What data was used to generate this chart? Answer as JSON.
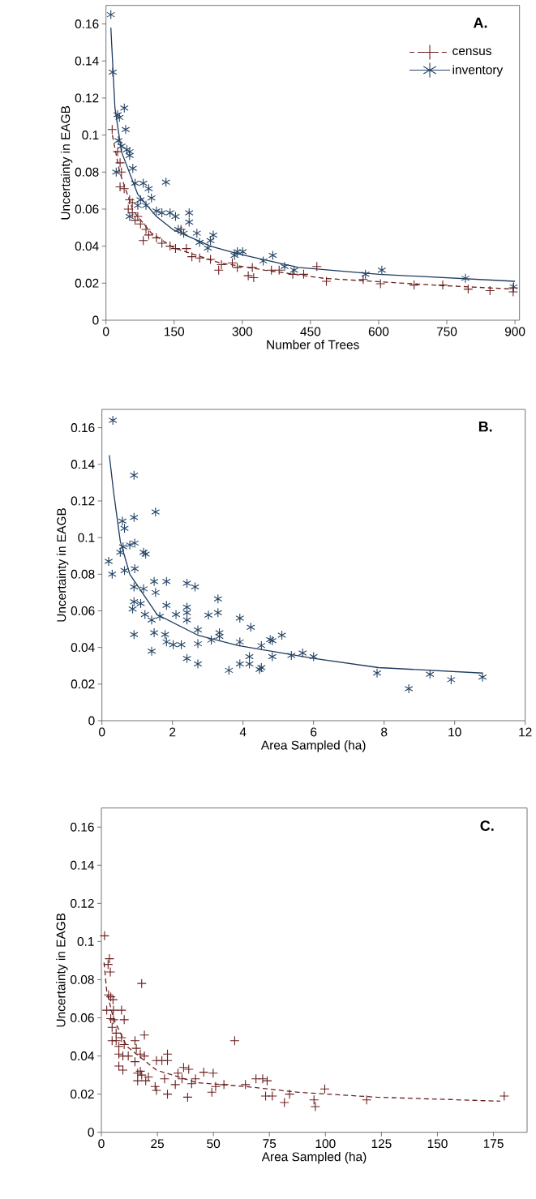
{
  "chart_data": [
    {
      "type": "scatter",
      "xlabel": "Number of Trees",
      "ylabel": "Uncertainty in EAGB",
      "annotations": [
        "A."
      ],
      "xlim": [
        0,
        910
      ],
      "ylim": [
        0,
        0.17
      ],
      "xticks": [
        0,
        150,
        300,
        450,
        600,
        750,
        900
      ],
      "yticks": [
        0,
        0.02,
        0.04,
        0.06,
        0.08,
        0.1,
        0.12,
        0.14,
        0.16
      ],
      "legend": "top right",
      "grid": false,
      "series": [
        {
          "name": "census",
          "type": "scatter",
          "marker": "cross",
          "color": "#6b1f1f",
          "x": [
            13.6,
            25.5,
            31,
            34,
            31,
            40,
            52,
            58,
            49,
            58,
            70,
            64,
            76,
            88,
            94,
            82,
            111,
            123,
            141,
            153,
            165,
            177,
            189,
            206,
            230,
            254,
            278,
            289,
            248,
            313,
            325,
            322,
            364,
            381,
            411,
            435,
            464,
            485,
            566,
            604,
            678,
            741,
            797,
            845,
            896,
            896
          ],
          "values": [
            0.103,
            0.091,
            0.085,
            0.08,
            0.072,
            0.071,
            0.065,
            0.0635,
            0.06,
            0.058,
            0.056,
            0.054,
            0.052,
            0.049,
            0.046,
            0.043,
            0.0445,
            0.0416,
            0.04,
            0.0387,
            0.049,
            0.0387,
            0.0343,
            0.0336,
            0.0328,
            0.03,
            0.031,
            0.0285,
            0.027,
            0.024,
            0.023,
            0.0285,
            0.027,
            0.027,
            0.0248,
            0.0248,
            0.029,
            0.021,
            0.022,
            0.0197,
            0.019,
            0.019,
            0.0168,
            0.016,
            0.0153,
            0.0175
          ]
        },
        {
          "type": "line",
          "line_style": "dashed",
          "color": "#6b1f1f",
          "x": [
            14,
            30,
            60,
            100,
            150,
            250,
            350,
            480,
            720,
            898
          ],
          "values": [
            0.1,
            0.08,
            0.059,
            0.047,
            0.039,
            0.031,
            0.027,
            0.0226,
            0.019,
            0.0168
          ]
        },
        {
          "name": "inventory",
          "type": "scatter",
          "color": "#244466",
          "x": [
            10.7,
            14.8,
            25.5,
            29.6,
            40.3,
            43.3,
            27.3,
            34.4,
            46,
            52,
            22.5,
            52,
            59,
            64,
            82,
            94,
            100,
            132,
            52,
            70,
            76,
            88,
            111,
            123,
            141,
            153,
            183,
            183,
            159,
            171,
            200,
            206,
            236,
            230,
            289,
            283,
            224,
            301,
            367,
            346,
            393,
            414,
            571,
            607,
            791,
            897
          ],
          "values": [
            0.165,
            0.134,
            0.111,
            0.1095,
            0.1146,
            0.103,
            0.097,
            0.094,
            0.092,
            0.091,
            0.08,
            0.089,
            0.082,
            0.074,
            0.074,
            0.071,
            0.066,
            0.0745,
            0.056,
            0.062,
            0.065,
            0.062,
            0.059,
            0.058,
            0.058,
            0.056,
            0.058,
            0.053,
            0.049,
            0.047,
            0.047,
            0.042,
            0.046,
            0.043,
            0.037,
            0.035,
            0.039,
            0.037,
            0.035,
            0.032,
            0.029,
            0.027,
            0.0248,
            0.027,
            0.0226,
            0.018
          ]
        },
        {
          "type": "line",
          "line_style": "solid",
          "color": "#1d3b5e",
          "x": [
            10.7,
            19.6,
            34,
            70,
            111,
            147,
            230,
            289,
            423,
            601,
            900
          ],
          "values": [
            0.158,
            0.115,
            0.091,
            0.068,
            0.056,
            0.049,
            0.04,
            0.036,
            0.0285,
            0.0248,
            0.021
          ]
        }
      ]
    },
    {
      "type": "scatter",
      "xlabel": "Area Sampled (ha)",
      "ylabel": "Uncertainty in EAGB",
      "annotations": [
        "B."
      ],
      "xlim": [
        0,
        12
      ],
      "ylim": [
        0,
        0.17
      ],
      "xticks": [
        0,
        2,
        4,
        6,
        8,
        10,
        12
      ],
      "yticks": [
        0,
        0.02,
        0.04,
        0.06,
        0.08,
        0.1,
        0.12,
        0.14,
        0.16
      ],
      "grid": false,
      "series": [
        {
          "type": "scatter",
          "color": "#244466",
          "x": [
            0.31,
            0.91,
            1.52,
            0.91,
            0.58,
            0.64,
            0.19,
            0.29,
            0.52,
            0.6,
            0.79,
            0.93,
            1.18,
            1.24,
            0.64,
            0.93,
            0.91,
            1.18,
            1.48,
            1.83,
            1.52,
            0.91,
            0.87,
            1.1,
            1.22,
            1.41,
            1.64,
            1.83,
            2.1,
            2.41,
            2.41,
            2.41,
            2.64,
            2.41,
            0.91,
            1.41,
            1.48,
            1.79,
            1.83,
            2.02,
            2.25,
            2.41,
            2.72,
            2.72,
            2.72,
            3.02,
            3.1,
            3.29,
            3.29,
            3.33,
            3.33,
            3.6,
            3.91,
            3.91,
            3.91,
            4.18,
            4.22,
            4.18,
            4.52,
            4.52,
            4.83,
            4.83,
            5.1,
            5.37,
            4.47,
            4.77,
            5.69,
            6.0,
            7.8,
            8.7,
            9.3,
            9.9,
            10.79
          ],
          "values": [
            0.164,
            0.134,
            0.114,
            0.111,
            0.109,
            0.105,
            0.087,
            0.08,
            0.092,
            0.095,
            0.096,
            0.097,
            0.092,
            0.091,
            0.082,
            0.083,
            0.073,
            0.072,
            0.076,
            0.076,
            0.07,
            0.065,
            0.061,
            0.064,
            0.058,
            0.055,
            0.057,
            0.063,
            0.058,
            0.059,
            0.062,
            0.055,
            0.073,
            0.075,
            0.047,
            0.038,
            0.048,
            0.047,
            0.043,
            0.0415,
            0.0415,
            0.034,
            0.031,
            0.0496,
            0.042,
            0.0577,
            0.044,
            0.0665,
            0.059,
            0.048,
            0.046,
            0.0275,
            0.056,
            0.043,
            0.031,
            0.035,
            0.051,
            0.031,
            0.029,
            0.041,
            0.0437,
            0.035,
            0.0467,
            0.0356,
            0.028,
            0.0443,
            0.037,
            0.035,
            0.026,
            0.0175,
            0.0253,
            0.0224,
            0.0238
          ]
        },
        {
          "type": "line",
          "line_style": "solid",
          "color": "#1d3b5e",
          "x": [
            0.21,
            0.33,
            0.52,
            0.79,
            1.56,
            2.72,
            3.87,
            6,
            7.84,
            10.79
          ],
          "values": [
            0.145,
            0.125,
            0.098,
            0.08,
            0.058,
            0.0467,
            0.041,
            0.034,
            0.029,
            0.026
          ]
        }
      ]
    },
    {
      "type": "scatter",
      "xlabel": "Area Sampled (ha)",
      "ylabel": "Uncertainty in EAGB",
      "annotations": [
        "C."
      ],
      "xlim": [
        0,
        190
      ],
      "ylim": [
        0,
        0.17
      ],
      "xticks": [
        0,
        25,
        50,
        75,
        100,
        125,
        150,
        175
      ],
      "yticks": [
        0,
        0.02,
        0.04,
        0.06,
        0.08,
        0.1,
        0.12,
        0.14,
        0.16
      ],
      "grid": false,
      "series": [
        {
          "type": "scatter",
          "marker": "cross",
          "color": "#6b1f1f",
          "x": [
            1.4,
            3.6,
            4.0,
            3.0,
            3.2,
            4.2,
            5.2,
            2.4,
            5.4,
            9,
            4.2,
            5.4,
            10.2,
            4.8,
            6.6,
            6.6,
            9,
            4.8,
            7.8,
            10.2,
            18,
            19.2,
            7.8,
            9.6,
            7.8,
            9.6,
            12,
            15,
            15.6,
            15,
            16.2,
            17.4,
            19.2,
            16.2,
            18,
            19.8,
            21,
            17.4,
            24.6,
            27,
            29.5,
            29.5,
            24,
            24.6,
            29.5,
            28.2,
            33,
            34.2,
            36.7,
            39,
            36,
            38.5,
            40.3,
            42,
            45.7,
            49.9,
            49.3,
            51,
            54.7,
            59.5,
            64.3,
            69,
            72,
            74,
            73.3,
            76.3,
            81.7,
            84,
            94.9,
            95.5,
            99.7,
            118.4,
            179.8
          ],
          "values": [
            0.103,
            0.091,
            0.084,
            0.088,
            0.072,
            0.071,
            0.0695,
            0.064,
            0.064,
            0.064,
            0.0596,
            0.059,
            0.059,
            0.055,
            0.052,
            0.048,
            0.0496,
            0.048,
            0.045,
            0.046,
            0.078,
            0.051,
            0.041,
            0.04,
            0.0347,
            0.0326,
            0.04,
            0.048,
            0.044,
            0.037,
            0.031,
            0.041,
            0.04,
            0.027,
            0.03,
            0.027,
            0.029,
            0.032,
            0.0376,
            0.0376,
            0.041,
            0.0376,
            0.024,
            0.022,
            0.02,
            0.028,
            0.025,
            0.031,
            0.034,
            0.033,
            0.028,
            0.0184,
            0.0255,
            0.028,
            0.0315,
            0.031,
            0.021,
            0.024,
            0.025,
            0.048,
            0.025,
            0.028,
            0.028,
            0.027,
            0.019,
            0.019,
            0.0156,
            0.02,
            0.017,
            0.0135,
            0.0227,
            0.017,
            0.019
          ]
        },
        {
          "type": "line",
          "line_style": "dashed",
          "color": "#6b1f1f",
          "x": [
            1.2,
            2.4,
            5.4,
            11.4,
            24.6,
            42.7,
            64.3,
            87.7,
            123,
            178
          ],
          "values": [
            0.089,
            0.074,
            0.0596,
            0.045,
            0.0326,
            0.026,
            0.024,
            0.021,
            0.0184,
            0.0163
          ]
        }
      ]
    }
  ]
}
